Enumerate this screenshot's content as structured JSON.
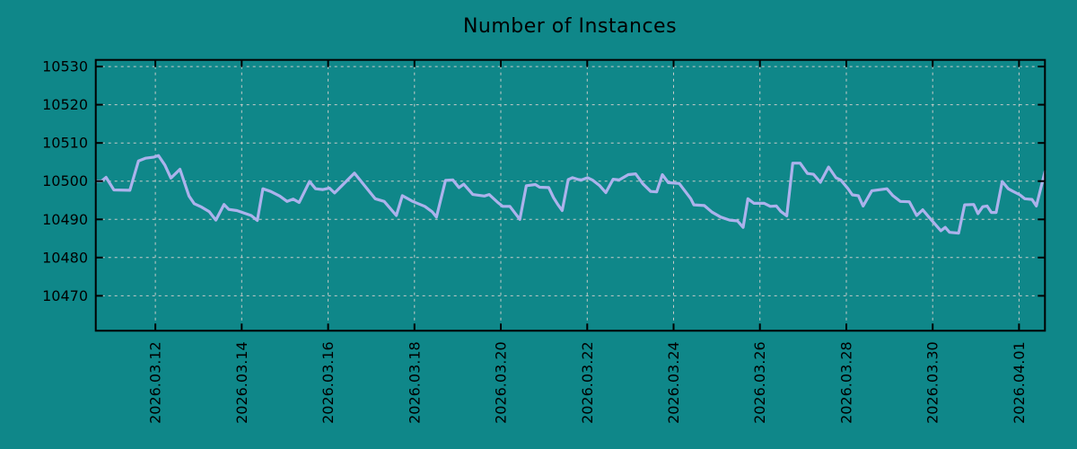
{
  "page": {
    "background_color": "#0F8789",
    "title_color": "#000000"
  },
  "chart_data": {
    "type": "line",
    "title": "Number of Instances",
    "xlabel": "",
    "ylabel": "",
    "legend": "none",
    "grid": "dotted",
    "colors": {
      "background": "#0F8789",
      "line": "#ACB2EC",
      "grid": "#C8CBC9",
      "border": "#000000",
      "tick_text": "#000000"
    },
    "x_ticks": [
      {
        "day": 12,
        "label": "2026.03.12"
      },
      {
        "day": 14,
        "label": "2026.03.14"
      },
      {
        "day": 16,
        "label": "2026.03.16"
      },
      {
        "day": 18,
        "label": "2026.03.18"
      },
      {
        "day": 20,
        "label": "2026.03.20"
      },
      {
        "day": 22,
        "label": "2026.03.22"
      },
      {
        "day": 24,
        "label": "2026.03.24"
      },
      {
        "day": 26,
        "label": "2026.03.26"
      },
      {
        "day": 28,
        "label": "2026.03.28"
      },
      {
        "day": 30,
        "label": "2026.03.30"
      },
      {
        "day": 32,
        "label": "2026.04.01"
      }
    ],
    "y_ticks": [
      10470,
      10480,
      10490,
      10500,
      10510,
      10520,
      10530
    ],
    "xlim_days": [
      10.62,
      32.6
    ],
    "ylim": [
      10460.85,
      10531.73
    ],
    "series": [
      {
        "name": "Number of Instances",
        "points": [
          [
            10.62,
            10500.0
          ],
          [
            10.75,
            10500.0
          ],
          [
            10.86,
            10501.0
          ],
          [
            11.04,
            10497.7
          ],
          [
            11.41,
            10497.6
          ],
          [
            11.61,
            10505.3
          ],
          [
            11.77,
            10506.0
          ],
          [
            11.97,
            10506.3
          ],
          [
            12.07,
            10506.7
          ],
          [
            12.22,
            10504.2
          ],
          [
            12.36,
            10500.8
          ],
          [
            12.57,
            10503.1
          ],
          [
            12.78,
            10496.1
          ],
          [
            12.9,
            10494.1
          ],
          [
            13.07,
            10493.2
          ],
          [
            13.25,
            10492.0
          ],
          [
            13.4,
            10489.8
          ],
          [
            13.59,
            10493.9
          ],
          [
            13.7,
            10492.6
          ],
          [
            13.89,
            10492.3
          ],
          [
            14.22,
            10491.0
          ],
          [
            14.36,
            10489.7
          ],
          [
            14.49,
            10498.0
          ],
          [
            14.67,
            10497.3
          ],
          [
            14.88,
            10496.1
          ],
          [
            15.05,
            10494.7
          ],
          [
            15.19,
            10495.3
          ],
          [
            15.33,
            10494.4
          ],
          [
            15.57,
            10499.9
          ],
          [
            15.71,
            10498.0
          ],
          [
            15.88,
            10497.8
          ],
          [
            16.03,
            10498.2
          ],
          [
            16.15,
            10496.9
          ],
          [
            16.61,
            10502.1
          ],
          [
            17.09,
            10495.4
          ],
          [
            17.3,
            10494.7
          ],
          [
            17.58,
            10491.0
          ],
          [
            17.72,
            10496.2
          ],
          [
            17.96,
            10494.7
          ],
          [
            18.24,
            10493.4
          ],
          [
            18.41,
            10492.0
          ],
          [
            18.51,
            10490.6
          ],
          [
            18.72,
            10500.2
          ],
          [
            18.89,
            10500.3
          ],
          [
            19.03,
            10498.3
          ],
          [
            19.14,
            10499.2
          ],
          [
            19.35,
            10496.5
          ],
          [
            19.62,
            10496.1
          ],
          [
            19.73,
            10496.5
          ],
          [
            19.93,
            10494.4
          ],
          [
            20.04,
            10493.4
          ],
          [
            20.21,
            10493.4
          ],
          [
            20.44,
            10490.0
          ],
          [
            20.59,
            10498.8
          ],
          [
            20.8,
            10499.1
          ],
          [
            20.9,
            10498.4
          ],
          [
            21.11,
            10498.3
          ],
          [
            21.22,
            10495.7
          ],
          [
            21.32,
            10493.9
          ],
          [
            21.42,
            10492.3
          ],
          [
            21.56,
            10500.4
          ],
          [
            21.66,
            10500.9
          ],
          [
            21.8,
            10500.4
          ],
          [
            21.87,
            10500.3
          ],
          [
            22.01,
            10500.9
          ],
          [
            22.12,
            10500.3
          ],
          [
            22.29,
            10498.8
          ],
          [
            22.43,
            10497.0
          ],
          [
            22.6,
            10500.5
          ],
          [
            22.74,
            10500.3
          ],
          [
            22.95,
            10501.7
          ],
          [
            23.12,
            10501.9
          ],
          [
            23.29,
            10499.3
          ],
          [
            23.47,
            10497.3
          ],
          [
            23.61,
            10497.2
          ],
          [
            23.74,
            10501.7
          ],
          [
            23.88,
            10499.6
          ],
          [
            24.13,
            10499.4
          ],
          [
            24.4,
            10495.4
          ],
          [
            24.47,
            10493.8
          ],
          [
            24.71,
            10493.6
          ],
          [
            24.89,
            10491.9
          ],
          [
            25.09,
            10490.6
          ],
          [
            25.3,
            10489.8
          ],
          [
            25.48,
            10489.6
          ],
          [
            25.61,
            10487.9
          ],
          [
            25.72,
            10495.4
          ],
          [
            25.86,
            10494.2
          ],
          [
            26.1,
            10494.2
          ],
          [
            26.24,
            10493.4
          ],
          [
            26.38,
            10493.5
          ],
          [
            26.48,
            10492.1
          ],
          [
            26.62,
            10490.9
          ],
          [
            26.76,
            10504.7
          ],
          [
            26.93,
            10504.7
          ],
          [
            27.1,
            10502.0
          ],
          [
            27.24,
            10501.8
          ],
          [
            27.4,
            10499.7
          ],
          [
            27.59,
            10503.7
          ],
          [
            27.76,
            10500.9
          ],
          [
            27.87,
            10500.3
          ],
          [
            28.04,
            10498.0
          ],
          [
            28.14,
            10496.4
          ],
          [
            28.28,
            10496.2
          ],
          [
            28.39,
            10493.5
          ],
          [
            28.59,
            10497.5
          ],
          [
            28.94,
            10498.0
          ],
          [
            29.08,
            10496.2
          ],
          [
            29.25,
            10494.7
          ],
          [
            29.46,
            10494.6
          ],
          [
            29.63,
            10491.0
          ],
          [
            29.77,
            10492.5
          ],
          [
            29.91,
            10490.6
          ],
          [
            30.19,
            10487.0
          ],
          [
            30.29,
            10487.9
          ],
          [
            30.39,
            10486.6
          ],
          [
            30.6,
            10486.4
          ],
          [
            30.74,
            10493.8
          ],
          [
            30.95,
            10493.9
          ],
          [
            31.05,
            10491.5
          ],
          [
            31.16,
            10493.3
          ],
          [
            31.26,
            10493.5
          ],
          [
            31.36,
            10491.8
          ],
          [
            31.47,
            10491.8
          ],
          [
            31.61,
            10499.9
          ],
          [
            31.75,
            10498.0
          ],
          [
            31.85,
            10497.4
          ],
          [
            32.02,
            10496.4
          ],
          [
            32.13,
            10495.4
          ],
          [
            32.3,
            10495.2
          ],
          [
            32.4,
            10493.5
          ],
          [
            32.6,
            10502.5
          ]
        ]
      }
    ]
  }
}
